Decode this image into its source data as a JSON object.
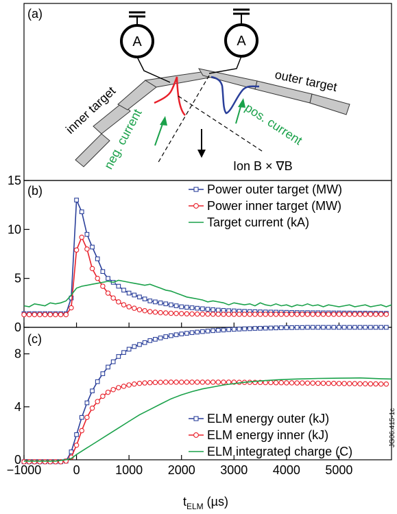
{
  "panel_a": {
    "label": "(a)",
    "ammeter_label": "A",
    "inner_target_label": "inner target",
    "outer_target_label": "outer target",
    "neg_current_label": "neg. current",
    "pos_current_label": "pos. current",
    "ion_drift_label": "Ion B × ∇B",
    "colors": {
      "red_curve": "#e8202a",
      "blue_curve": "#2a3f9a",
      "green_arrow": "#1aa14a",
      "target_fill": "#c8c8c8"
    }
  },
  "figure_id": "JG06.415-1c",
  "x_axis_label_main": "t",
  "x_axis_label_sub": "ELM",
  "x_axis_label_unit": " (µs)",
  "chart_data": [
    {
      "type": "line",
      "panel": "(b)",
      "xlim": [
        -1000,
        6000
      ],
      "ylim": [
        0,
        15
      ],
      "yticks": [
        0,
        5,
        10,
        15
      ],
      "legend_position": "top-right",
      "series": [
        {
          "name": "Power outer target (MW)",
          "color": "#2a3f9a",
          "marker": "square",
          "x": [
            -1000,
            -900,
            -800,
            -700,
            -600,
            -500,
            -400,
            -300,
            -200,
            -100,
            0,
            100,
            200,
            300,
            400,
            500,
            600,
            700,
            800,
            900,
            1000,
            1100,
            1200,
            1300,
            1400,
            1500,
            1600,
            1700,
            1800,
            1900,
            2000,
            2100,
            2200,
            2300,
            2400,
            2500,
            2600,
            2700,
            2800,
            2900,
            3000,
            3100,
            3200,
            3300,
            3400,
            3500,
            3600,
            3700,
            3800,
            3900,
            4000,
            4100,
            4200,
            4300,
            4400,
            4500,
            4600,
            4700,
            4800,
            4900,
            5000,
            5100,
            5200,
            5300,
            5400,
            5500,
            5600,
            5700,
            5800,
            5900
          ],
          "y": [
            1.4,
            1.4,
            1.4,
            1.4,
            1.4,
            1.4,
            1.4,
            1.4,
            1.4,
            3.0,
            13.0,
            11.8,
            9.5,
            8.2,
            7.0,
            5.7,
            5.0,
            4.6,
            4.2,
            3.8,
            3.5,
            3.3,
            3.1,
            2.9,
            2.7,
            2.6,
            2.5,
            2.4,
            2.3,
            2.2,
            2.1,
            2.05,
            2.0,
            1.95,
            1.9,
            1.85,
            1.8,
            1.76,
            1.73,
            1.7,
            1.68,
            1.65,
            1.63,
            1.61,
            1.6,
            1.58,
            1.57,
            1.56,
            1.55,
            1.54,
            1.53,
            1.52,
            1.51,
            1.5,
            1.5,
            1.49,
            1.49,
            1.48,
            1.48,
            1.47,
            1.47,
            1.46,
            1.46,
            1.45,
            1.45,
            1.45,
            1.44,
            1.44,
            1.43,
            1.43
          ]
        },
        {
          "name": "Power inner target (MW)",
          "color": "#e8202a",
          "marker": "circle",
          "x": [
            -1000,
            -900,
            -800,
            -700,
            -600,
            -500,
            -400,
            -300,
            -200,
            -100,
            0,
            100,
            200,
            300,
            400,
            500,
            600,
            700,
            800,
            900,
            1000,
            1100,
            1200,
            1300,
            1400,
            1500,
            1600,
            1700,
            1800,
            1900,
            2000,
            2100,
            2200,
            2300,
            2400,
            2500,
            2600,
            2700,
            2800,
            2900,
            3000,
            3100,
            3200,
            3300,
            3400,
            3500,
            3600,
            3700,
            3800,
            3900,
            4000,
            4100,
            4200,
            4300,
            4400,
            4500,
            4600,
            4700,
            4800,
            4900,
            5000,
            5100,
            5200,
            5300,
            5400,
            5500,
            5600,
            5700,
            5800,
            5900
          ],
          "y": [
            1.3,
            1.3,
            1.3,
            1.3,
            1.3,
            1.3,
            1.3,
            1.3,
            1.3,
            2.0,
            7.9,
            9.2,
            8.0,
            6.0,
            5.0,
            4.2,
            3.5,
            3.0,
            2.6,
            2.3,
            2.1,
            1.95,
            1.8,
            1.7,
            1.6,
            1.55,
            1.5,
            1.47,
            1.44,
            1.42,
            1.4,
            1.38,
            1.37,
            1.36,
            1.35,
            1.35,
            1.34,
            1.34,
            1.33,
            1.33,
            1.33,
            1.33,
            1.33,
            1.33,
            1.33,
            1.33,
            1.33,
            1.33,
            1.33,
            1.33,
            1.33,
            1.33,
            1.33,
            1.33,
            1.33,
            1.33,
            1.33,
            1.33,
            1.33,
            1.33,
            1.33,
            1.33,
            1.33,
            1.33,
            1.33,
            1.33,
            1.33,
            1.33,
            1.33,
            1.33
          ]
        },
        {
          "name": "Target current (kA)",
          "color": "#1aa14a",
          "marker": "none",
          "x": [
            -1000,
            -900,
            -800,
            -700,
            -600,
            -500,
            -400,
            -300,
            -200,
            -100,
            0,
            100,
            200,
            300,
            400,
            500,
            600,
            700,
            800,
            900,
            1000,
            1100,
            1200,
            1300,
            1400,
            1500,
            1600,
            1700,
            1800,
            1900,
            2000,
            2100,
            2200,
            2300,
            2400,
            2500,
            2600,
            2700,
            2800,
            2900,
            3000,
            3100,
            3200,
            3300,
            3400,
            3500,
            3600,
            3700,
            3800,
            3900,
            4000,
            4100,
            4200,
            4300,
            4400,
            4500,
            4600,
            4700,
            4800,
            4900,
            5000,
            5100,
            5200,
            5300,
            5400,
            5500,
            5600,
            5700,
            5800,
            5900,
            6000
          ],
          "y": [
            2.2,
            2.1,
            2.4,
            2.3,
            2.2,
            2.5,
            2.4,
            2.5,
            2.7,
            3.3,
            4.0,
            4.2,
            4.3,
            4.4,
            4.5,
            4.6,
            4.7,
            4.6,
            4.8,
            4.7,
            4.6,
            4.5,
            4.4,
            4.3,
            4.4,
            4.2,
            4.0,
            3.8,
            3.7,
            3.5,
            3.3,
            3.1,
            3.0,
            2.9,
            2.8,
            2.6,
            2.7,
            2.6,
            2.5,
            2.3,
            2.5,
            2.4,
            2.3,
            2.4,
            2.2,
            2.5,
            2.3,
            2.2,
            2.4,
            2.2,
            2.3,
            2.1,
            2.3,
            2.2,
            2.4,
            2.2,
            2.3,
            2.1,
            2.3,
            2.2,
            2.1,
            2.2,
            2.3,
            2.1,
            2.2,
            2.3,
            2.1,
            2.2,
            2.3,
            2.1,
            2.3
          ]
        }
      ]
    },
    {
      "type": "line",
      "panel": "(c)",
      "xlim": [
        -1000,
        6000
      ],
      "ylim": [
        0,
        10
      ],
      "xticks": [
        -1000,
        0,
        1000,
        2000,
        3000,
        4000,
        5000
      ],
      "yticks": [
        0,
        4,
        8
      ],
      "legend_position": "bottom-right",
      "series": [
        {
          "name": "ELM energy outer (kJ)",
          "color": "#2a3f9a",
          "marker": "square",
          "x": [
            -1000,
            -900,
            -800,
            -700,
            -600,
            -500,
            -400,
            -300,
            -200,
            -100,
            0,
            100,
            200,
            300,
            400,
            500,
            600,
            700,
            800,
            900,
            1000,
            1100,
            1200,
            1300,
            1400,
            1500,
            1600,
            1700,
            1800,
            1900,
            2000,
            2100,
            2200,
            2300,
            2400,
            2500,
            2600,
            2700,
            2800,
            2900,
            3000,
            3100,
            3200,
            3300,
            3400,
            3500,
            3600,
            3700,
            3800,
            3900,
            4000,
            4100,
            4200,
            4300,
            4400,
            4500,
            4600,
            4700,
            4800,
            4900,
            5000,
            5100,
            5200,
            5300,
            5400,
            5500,
            5600,
            5700,
            5800,
            5900
          ],
          "y": [
            -0.15,
            -0.15,
            -0.15,
            -0.15,
            -0.15,
            -0.15,
            -0.15,
            -0.15,
            -0.1,
            0.6,
            1.9,
            3.2,
            4.3,
            5.2,
            5.9,
            6.5,
            7.0,
            7.4,
            7.8,
            8.1,
            8.35,
            8.55,
            8.7,
            8.85,
            9.0,
            9.1,
            9.2,
            9.3,
            9.37,
            9.44,
            9.5,
            9.55,
            9.6,
            9.64,
            9.68,
            9.72,
            9.75,
            9.78,
            9.8,
            9.83,
            9.85,
            9.87,
            9.89,
            9.9,
            9.92,
            9.93,
            9.94,
            9.95,
            9.96,
            9.97,
            9.98,
            9.98,
            9.99,
            9.99,
            10.0,
            10.0,
            10.0,
            10.0,
            10.0,
            10.0,
            10.0,
            10.0,
            10.0,
            10.0,
            10.0,
            10.0,
            10.0,
            10.0,
            10.0,
            10.0
          ]
        },
        {
          "name": "ELM energy inner (kJ)",
          "color": "#e8202a",
          "marker": "circle",
          "x": [
            -1000,
            -900,
            -800,
            -700,
            -600,
            -500,
            -400,
            -300,
            -200,
            -100,
            0,
            100,
            200,
            300,
            400,
            500,
            600,
            700,
            800,
            900,
            1000,
            1100,
            1200,
            1300,
            1400,
            1500,
            1600,
            1700,
            1800,
            1900,
            2000,
            2100,
            2200,
            2300,
            2400,
            2500,
            2600,
            2700,
            2800,
            2900,
            3000,
            3100,
            3200,
            3300,
            3400,
            3500,
            3600,
            3700,
            3800,
            3900,
            4000,
            4100,
            4200,
            4300,
            4400,
            4500,
            4600,
            4700,
            4800,
            4900,
            5000,
            5100,
            5200,
            5300,
            5400,
            5500,
            5600,
            5700,
            5800,
            5900
          ],
          "y": [
            -0.15,
            -0.15,
            -0.15,
            -0.15,
            -0.15,
            -0.15,
            -0.15,
            -0.15,
            -0.1,
            0.2,
            1.1,
            2.2,
            3.2,
            3.9,
            4.4,
            4.8,
            5.1,
            5.3,
            5.45,
            5.55,
            5.65,
            5.72,
            5.77,
            5.8,
            5.82,
            5.84,
            5.85,
            5.86,
            5.86,
            5.86,
            5.86,
            5.86,
            5.86,
            5.86,
            5.86,
            5.86,
            5.86,
            5.86,
            5.86,
            5.86,
            5.86,
            5.85,
            5.85,
            5.85,
            5.84,
            5.84,
            5.83,
            5.83,
            5.82,
            5.82,
            5.81,
            5.81,
            5.8,
            5.8,
            5.79,
            5.79,
            5.78,
            5.78,
            5.77,
            5.77,
            5.76,
            5.76,
            5.75,
            5.75,
            5.74,
            5.74,
            5.73,
            5.73,
            5.72,
            5.72
          ]
        },
        {
          "name": "ELM integrated charge (C)",
          "color": "#1aa14a",
          "marker": "none",
          "x": [
            -1000,
            -800,
            -600,
            -400,
            -200,
            -100,
            0,
            200,
            400,
            600,
            800,
            1000,
            1200,
            1400,
            1600,
            1800,
            2000,
            2200,
            2400,
            2600,
            2800,
            3000,
            3200,
            3400,
            3600,
            3800,
            4000,
            4200,
            4400,
            4600,
            4800,
            5000,
            5200,
            5400,
            5600,
            5800,
            6000
          ],
          "y": [
            -0.1,
            -0.1,
            -0.1,
            -0.1,
            0.0,
            0.1,
            0.4,
            0.9,
            1.4,
            1.9,
            2.4,
            2.9,
            3.4,
            3.8,
            4.2,
            4.6,
            4.9,
            5.15,
            5.35,
            5.5,
            5.65,
            5.75,
            5.85,
            5.92,
            5.98,
            6.03,
            6.07,
            6.1,
            6.12,
            6.14,
            6.15,
            6.16,
            6.17,
            6.18,
            6.15,
            6.12,
            6.1
          ]
        }
      ]
    }
  ]
}
